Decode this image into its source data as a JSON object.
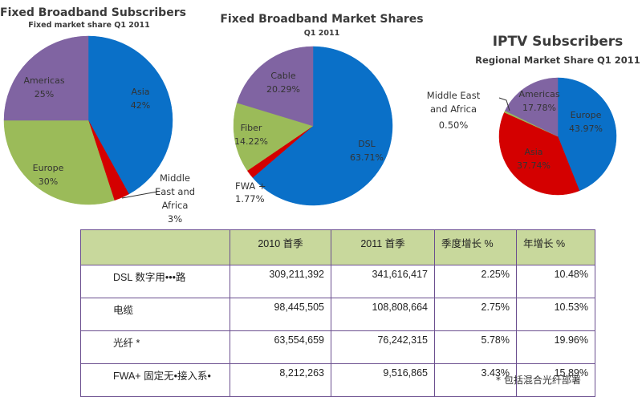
{
  "chart_data": [
    {
      "type": "pie",
      "title": "Fixed Broadband Subscribers",
      "subtitle": "Fixed market share Q1 2011",
      "slices": [
        {
          "label": "Asia",
          "value": 42,
          "display": "42%",
          "color": "#0a70c8"
        },
        {
          "label": "Middle East and Africa",
          "value": 3,
          "display": "3%",
          "color": "#d40000"
        },
        {
          "label": "Europe",
          "value": 30,
          "display": "30%",
          "color": "#9bbb59"
        },
        {
          "label": "Americas",
          "value": 25,
          "display": "25%",
          "color": "#8064a2"
        }
      ]
    },
    {
      "type": "pie",
      "title": "Fixed Broadband Market Shares",
      "subtitle": "Q1 2011",
      "slices": [
        {
          "label": "DSL",
          "value": 63.71,
          "display": "63.71%",
          "color": "#0a70c8"
        },
        {
          "label": "FWA +",
          "value": 1.77,
          "display": "1.77%",
          "color": "#d40000"
        },
        {
          "label": "Fiber",
          "value": 14.22,
          "display": "14.22%",
          "color": "#9bbb59"
        },
        {
          "label": "Cable",
          "value": 20.29,
          "display": "20.29%",
          "color": "#8064a2"
        }
      ]
    },
    {
      "type": "pie",
      "title": "IPTV Subscribers",
      "subtitle": "Regional Market Share Q1 2011",
      "slices": [
        {
          "label": "Europe",
          "value": 43.97,
          "display": "43.97%",
          "color": "#0a70c8"
        },
        {
          "label": "Asia",
          "value": 37.74,
          "display": "37.74%",
          "color": "#d40000"
        },
        {
          "label": "Middle East and Africa",
          "value": 0.5,
          "display": "0.50%",
          "color": "#9bbb59"
        },
        {
          "label": "Americas",
          "value": 17.78,
          "display": "17.78%",
          "color": "#8064a2"
        }
      ]
    },
    {
      "type": "table",
      "columns": [
        "",
        "2010 首季",
        "2011 首季",
        "季度增长 %",
        "年增长 %"
      ],
      "rows": [
        [
          "DSL 数字用•••路",
          "309,211,392",
          "341,616,417",
          "2.25%",
          "10.48%"
        ],
        [
          "电缆",
          "98,445,505",
          "108,808,664",
          "2.75%",
          "10.53%"
        ],
        [
          "光纤 *",
          "63,554,659",
          "76,242,315",
          "5.78%",
          "19.96%"
        ],
        [
          "FWA+ 固定无•接入系•",
          "8,212,263",
          "9,516,865",
          "3.43%",
          "15.89%"
        ]
      ],
      "footnote": "* 包括混合光纤部署"
    }
  ]
}
